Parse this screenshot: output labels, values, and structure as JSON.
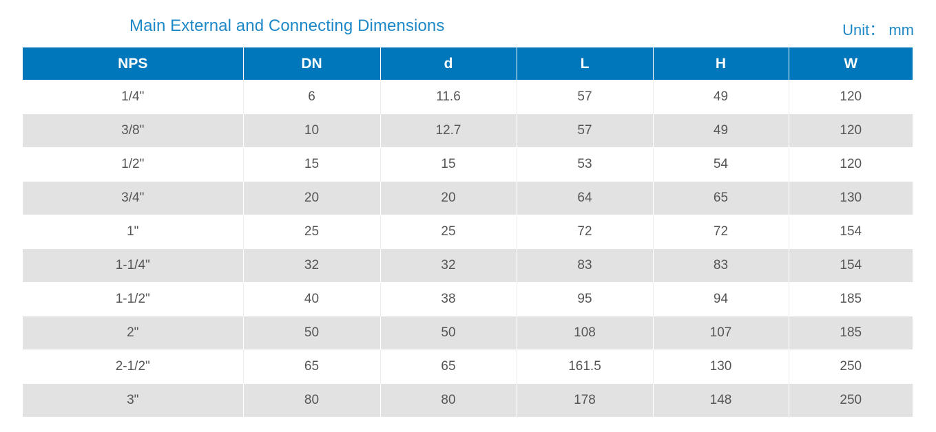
{
  "title": "Main External and Connecting Dimensions",
  "unit": "Unit： mm",
  "table": {
    "headers": [
      "NPS",
      "DN",
      "d",
      "L",
      "H",
      "W"
    ],
    "rows": [
      [
        "1/4\"",
        "6",
        "11.6",
        "57",
        "49",
        "120"
      ],
      [
        "3/8\"",
        "10",
        "12.7",
        "57",
        "49",
        "120"
      ],
      [
        "1/2\"",
        "15",
        "15",
        "53",
        "54",
        "120"
      ],
      [
        "3/4\"",
        "20",
        "20",
        "64",
        "65",
        "130"
      ],
      [
        "1\"",
        "25",
        "25",
        "72",
        "72",
        "154"
      ],
      [
        "1-1/4\"",
        "32",
        "32",
        "83",
        "83",
        "154"
      ],
      [
        "1-1/2\"",
        "40",
        "38",
        "95",
        "94",
        "185"
      ],
      [
        "2\"",
        "50",
        "50",
        "108",
        "107",
        "185"
      ],
      [
        "2-1/2\"",
        "65",
        "65",
        "161.5",
        "130",
        "250"
      ],
      [
        "3\"",
        "80",
        "80",
        "178",
        "148",
        "250"
      ]
    ]
  },
  "colors": {
    "accent": "#1e88c7",
    "header_bg": "#0077bb",
    "row_alt_bg": "#e2e2e2"
  }
}
